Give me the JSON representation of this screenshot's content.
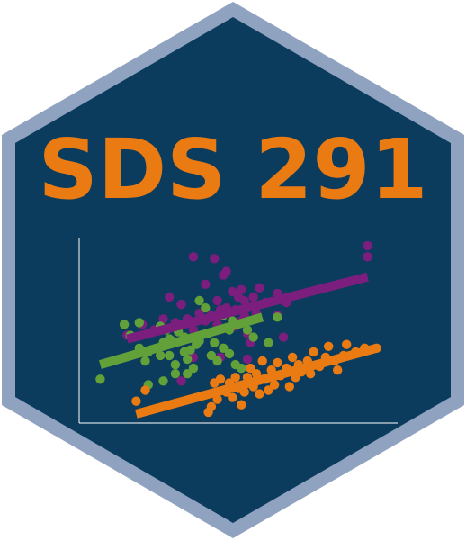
{
  "sticker": {
    "title": "SDS 291",
    "colors": {
      "border": "#8fa2c0",
      "background": "#0c3c5d",
      "title": "#ea7a12",
      "axis": "#ffffff"
    }
  },
  "chart_data": {
    "type": "scatter",
    "title": "",
    "xlabel": "",
    "ylabel": "",
    "grid": false,
    "legend": "none",
    "xlim": [
      0,
      10
    ],
    "ylim": [
      0,
      10
    ],
    "series": [
      {
        "color": "#7b1e7e",
        "points": [
          [
            1.3,
            4.7
          ],
          [
            1.8,
            5.3
          ],
          [
            2.2,
            5.0
          ],
          [
            2.5,
            5.6
          ],
          [
            2.7,
            6.8
          ],
          [
            2.9,
            5.4
          ],
          [
            3.1,
            6.4
          ],
          [
            3.3,
            5.6
          ],
          [
            3.5,
            5.0
          ],
          [
            3.5,
            9.0
          ],
          [
            3.7,
            5.9
          ],
          [
            3.9,
            5.5
          ],
          [
            3.9,
            7.5
          ],
          [
            4.1,
            5.8
          ],
          [
            4.2,
            8.9
          ],
          [
            4.3,
            6.6
          ],
          [
            4.3,
            5.3
          ],
          [
            4.4,
            6.1
          ],
          [
            4.5,
            8.0
          ],
          [
            4.6,
            8.2
          ],
          [
            4.6,
            6.2
          ],
          [
            4.8,
            7.1
          ],
          [
            4.9,
            6.1
          ],
          [
            5.0,
            6.8
          ],
          [
            5.1,
            7.2
          ],
          [
            5.1,
            5.5
          ],
          [
            5.2,
            6.6
          ],
          [
            5.2,
            5.8
          ],
          [
            5.3,
            4.8
          ],
          [
            5.3,
            3.4
          ],
          [
            5.4,
            4.3
          ],
          [
            5.5,
            6.8
          ],
          [
            5.6,
            5.9
          ],
          [
            5.7,
            7.3
          ],
          [
            5.9,
            6.5
          ],
          [
            6.3,
            7.0
          ],
          [
            6.3,
            5.8
          ],
          [
            6.5,
            4.6
          ],
          [
            3.5,
            3.5
          ],
          [
            3.1,
            2.2
          ],
          [
            4.4,
            3.5
          ],
          [
            4.9,
            5.2
          ],
          [
            6.6,
            6.5
          ],
          [
            9.3,
            9.0
          ],
          [
            9.3,
            9.6
          ]
        ],
        "fit": [
          [
            1.3,
            4.5
          ],
          [
            9.3,
            7.9
          ]
        ]
      },
      {
        "color": "#62a03a",
        "points": [
          [
            0.4,
            2.3
          ],
          [
            1.2,
            5.3
          ],
          [
            1.4,
            4.7
          ],
          [
            1.7,
            5.4
          ],
          [
            1.7,
            4.0
          ],
          [
            1.9,
            3.3
          ],
          [
            2.0,
            3.8
          ],
          [
            2.0,
            2.0
          ],
          [
            2.3,
            4.0
          ],
          [
            2.4,
            5.2
          ],
          [
            2.4,
            3.6
          ],
          [
            2.5,
            4.3
          ],
          [
            2.5,
            2.2
          ],
          [
            2.6,
            5.0
          ],
          [
            2.7,
            4.5
          ],
          [
            2.7,
            3.6
          ],
          [
            2.8,
            4.4
          ],
          [
            2.9,
            3.1
          ],
          [
            3.0,
            4.9
          ],
          [
            3.2,
            3.8
          ],
          [
            3.2,
            4.6
          ],
          [
            3.3,
            3.4
          ],
          [
            3.4,
            3.9
          ],
          [
            3.5,
            2.9
          ],
          [
            3.6,
            4.2
          ],
          [
            3.7,
            4.4
          ],
          [
            3.7,
            6.6
          ],
          [
            3.9,
            6.2
          ],
          [
            4.0,
            4.8
          ],
          [
            4.1,
            3.6
          ],
          [
            4.2,
            4.3
          ],
          [
            4.3,
            3.3
          ],
          [
            4.5,
            5.8
          ],
          [
            4.5,
            4.0
          ],
          [
            4.7,
            5.0
          ],
          [
            4.7,
            3.7
          ],
          [
            4.8,
            5.5
          ],
          [
            4.9,
            3.1
          ],
          [
            5.1,
            2.9
          ],
          [
            5.3,
            5.0
          ],
          [
            5.5,
            4.6
          ],
          [
            6.0,
            4.3
          ],
          [
            6.3,
            5.7
          ],
          [
            3.3,
            2.6
          ],
          [
            2.9,
            2.6
          ]
        ],
        "fit": [
          [
            0.4,
            3.1
          ],
          [
            5.8,
            5.7
          ]
        ]
      },
      {
        "color": "#ea7a12",
        "points": [
          [
            1.6,
            1.1
          ],
          [
            1.9,
            1.7
          ],
          [
            4.0,
            0.5
          ],
          [
            4.1,
            0.8
          ],
          [
            4.2,
            2.1
          ],
          [
            4.3,
            1.2
          ],
          [
            4.4,
            2.3
          ],
          [
            4.6,
            1.6
          ],
          [
            4.7,
            2.1
          ],
          [
            4.8,
            1.3
          ],
          [
            4.9,
            2.4
          ],
          [
            5.0,
            1.8
          ],
          [
            5.1,
            0.9
          ],
          [
            5.2,
            1.6
          ],
          [
            5.3,
            2.4
          ],
          [
            5.4,
            2.9
          ],
          [
            5.5,
            1.9
          ],
          [
            5.6,
            2.6
          ],
          [
            5.7,
            1.5
          ],
          [
            5.8,
            3.3
          ],
          [
            5.9,
            2.3
          ],
          [
            6.0,
            1.7
          ],
          [
            6.1,
            2.8
          ],
          [
            6.2,
            2.0
          ],
          [
            6.3,
            3.2
          ],
          [
            6.4,
            2.5
          ],
          [
            6.6,
            2.9
          ],
          [
            6.7,
            1.9
          ],
          [
            6.8,
            3.5
          ],
          [
            6.9,
            2.4
          ],
          [
            7.0,
            3.1
          ],
          [
            7.1,
            2.7
          ],
          [
            7.3,
            3.3
          ],
          [
            7.4,
            2.6
          ],
          [
            7.5,
            3.8
          ],
          [
            7.7,
            3.0
          ],
          [
            7.9,
            3.5
          ],
          [
            8.0,
            4.1
          ],
          [
            8.2,
            3.3
          ],
          [
            8.3,
            2.8
          ],
          [
            8.5,
            3.6
          ],
          [
            8.6,
            4.2
          ],
          [
            8.9,
            3.8
          ],
          [
            9.2,
            4.0
          ],
          [
            9.6,
            4.0
          ]
        ],
        "fit": [
          [
            1.6,
            0.4
          ],
          [
            9.6,
            4.0
          ]
        ]
      }
    ]
  }
}
